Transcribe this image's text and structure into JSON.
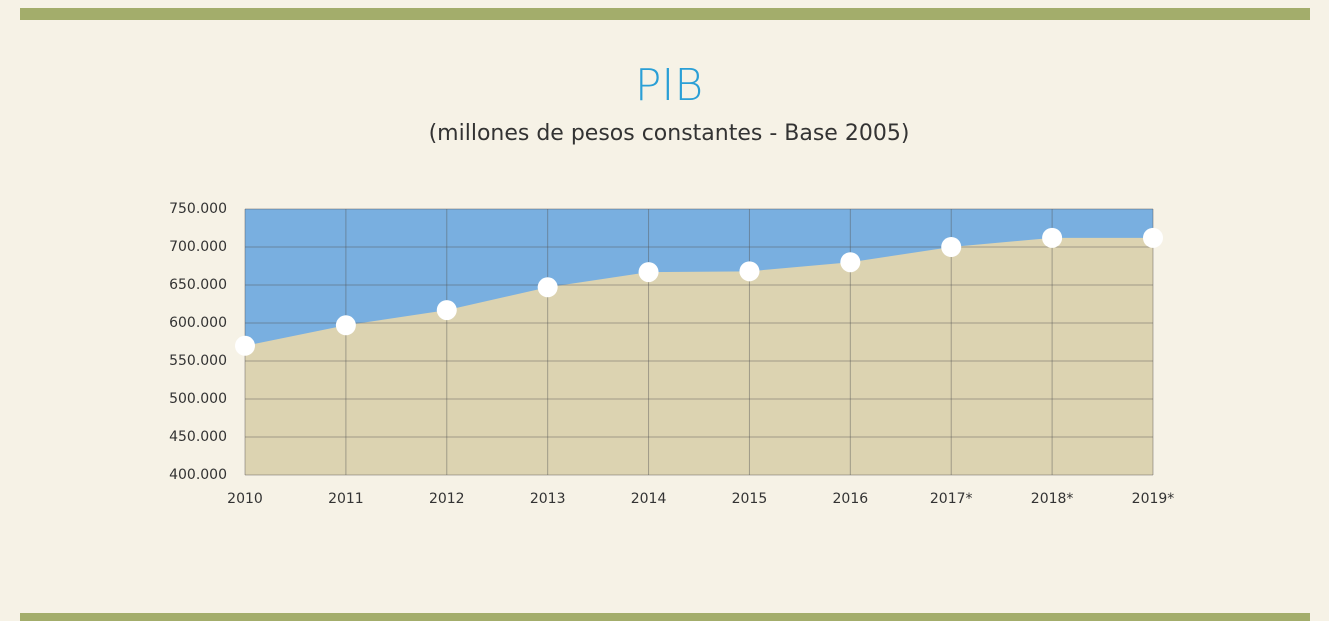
{
  "chart_data": {
    "type": "area",
    "title": "PIB",
    "subtitle": "(millones de pesos constantes -  Base 2005)",
    "categories": [
      "2010",
      "2011",
      "2012",
      "2013",
      "2014",
      "2015",
      "2016",
      "2017*",
      "2018*",
      "2019*"
    ],
    "series": [
      {
        "color": "#dcd3b1",
        "values": [
          570000,
          597000,
          617000,
          647000,
          667000,
          668000,
          680000,
          700000,
          712000,
          712000
        ]
      }
    ],
    "ylim": [
      400000,
      750000
    ],
    "yticks": [
      {
        "value": 400000,
        "label": "400.000"
      },
      {
        "value": 450000,
        "label": "450.000"
      },
      {
        "value": 500000,
        "label": "500.000"
      },
      {
        "value": 550000,
        "label": "550.000"
      },
      {
        "value": 600000,
        "label": "600.000"
      },
      {
        "value": 650000,
        "label": "650.000"
      },
      {
        "value": 700000,
        "label": "700.000"
      },
      {
        "value": 750000,
        "label": "750.000"
      }
    ],
    "grid": true,
    "plot_background": "#79afe0",
    "marker_color": "#ffffff"
  }
}
